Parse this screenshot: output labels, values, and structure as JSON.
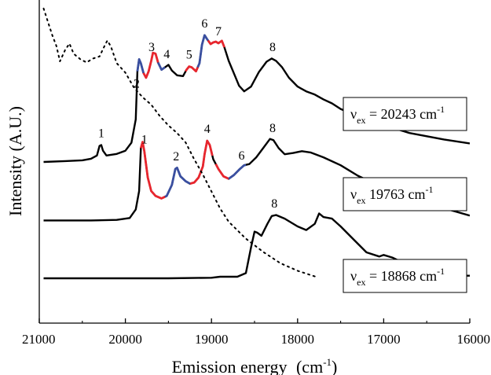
{
  "chart_data": {
    "type": "line",
    "xlabel": "Emission energy",
    "xlabel_unit_base": "(cm",
    "xlabel_unit_sup": "-1",
    "xlabel_unit_close": ")",
    "ylabel": "Intensity (A.U.)",
    "xlim": [
      21000,
      16000
    ],
    "x_reversed": true,
    "x_ticks": [
      "21000",
      "20000",
      "19000",
      "18000",
      "17000",
      "16000"
    ],
    "x_tick_values": [
      21000,
      20000,
      19000,
      18000,
      17000,
      16000
    ],
    "y_tick_labels": false,
    "grid": false,
    "colors": {
      "main": "#000000",
      "red": "#e8262e",
      "blue": "#3a4fa0"
    },
    "series": [
      {
        "id": "ex20243",
        "label_prefix": "ν",
        "label_sub": "ex",
        "label_value": " = 20243 cm",
        "label_sup": "-1",
        "style": "solid",
        "points": [
          [
            20950,
            0.02
          ],
          [
            20700,
            0.03
          ],
          [
            20500,
            0.04
          ],
          [
            20400,
            0.06
          ],
          [
            20330,
            0.1
          ],
          [
            20300,
            0.22
          ],
          [
            20280,
            0.23
          ],
          [
            20260,
            0.16
          ],
          [
            20220,
            0.1
          ],
          [
            20100,
            0.12
          ],
          [
            20000,
            0.16
          ],
          [
            19930,
            0.26
          ],
          [
            19880,
            0.55
          ],
          [
            19860,
            1.15
          ],
          [
            19840,
            1.3
          ],
          [
            19820,
            1.25
          ],
          [
            19790,
            1.13
          ],
          [
            19760,
            1.07
          ],
          [
            19730,
            1.15
          ],
          [
            19700,
            1.28
          ],
          [
            19680,
            1.38
          ],
          [
            19650,
            1.37
          ],
          [
            19620,
            1.26
          ],
          [
            19580,
            1.17
          ],
          [
            19540,
            1.2
          ],
          [
            19500,
            1.23
          ],
          [
            19460,
            1.16
          ],
          [
            19400,
            1.1
          ],
          [
            19330,
            1.09
          ],
          [
            19290,
            1.17
          ],
          [
            19260,
            1.21
          ],
          [
            19230,
            1.2
          ],
          [
            19180,
            1.15
          ],
          [
            19140,
            1.25
          ],
          [
            19110,
            1.48
          ],
          [
            19080,
            1.6
          ],
          [
            19050,
            1.55
          ],
          [
            19010,
            1.49
          ],
          [
            18980,
            1.51
          ],
          [
            18950,
            1.52
          ],
          [
            18920,
            1.5
          ],
          [
            18880,
            1.53
          ],
          [
            18850,
            1.45
          ],
          [
            18800,
            1.28
          ],
          [
            18730,
            1.1
          ],
          [
            18680,
            0.97
          ],
          [
            18620,
            0.9
          ],
          [
            18540,
            0.96
          ],
          [
            18450,
            1.14
          ],
          [
            18360,
            1.27
          ],
          [
            18300,
            1.31
          ],
          [
            18250,
            1.28
          ],
          [
            18180,
            1.2
          ],
          [
            18100,
            1.07
          ],
          [
            18000,
            0.96
          ],
          [
            17900,
            0.9
          ],
          [
            17800,
            0.86
          ],
          [
            17700,
            0.8
          ],
          [
            17600,
            0.75
          ],
          [
            17500,
            0.68
          ],
          [
            17300,
            0.59
          ],
          [
            17000,
            0.48
          ],
          [
            16700,
            0.38
          ],
          [
            16300,
            0.3
          ],
          [
            16000,
            0.25
          ]
        ],
        "red_segments": [
          [
            19790,
            19620
          ],
          [
            19300,
            19160
          ],
          [
            19040,
            18850
          ]
        ],
        "blue_segments": [
          [
            19860,
            19790
          ],
          [
            19620,
            19540
          ],
          [
            19160,
            19040
          ]
        ]
      },
      {
        "id": "ex19763",
        "label_prefix": "ν",
        "label_sub": "ex",
        "label_value": "  19763 cm",
        "label_sup": "-1",
        "style": "solid",
        "points": [
          [
            20950,
            0.02
          ],
          [
            20400,
            0.02
          ],
          [
            20100,
            0.03
          ],
          [
            19950,
            0.06
          ],
          [
            19880,
            0.2
          ],
          [
            19840,
            0.5
          ],
          [
            19820,
            1.2
          ],
          [
            19800,
            1.3
          ],
          [
            19780,
            1.15
          ],
          [
            19740,
            0.72
          ],
          [
            19700,
            0.5
          ],
          [
            19650,
            0.42
          ],
          [
            19580,
            0.38
          ],
          [
            19520,
            0.42
          ],
          [
            19460,
            0.6
          ],
          [
            19420,
            0.86
          ],
          [
            19400,
            0.88
          ],
          [
            19360,
            0.74
          ],
          [
            19300,
            0.66
          ],
          [
            19250,
            0.62
          ],
          [
            19200,
            0.64
          ],
          [
            19150,
            0.72
          ],
          [
            19100,
            0.9
          ],
          [
            19080,
            1.1
          ],
          [
            19050,
            1.32
          ],
          [
            19020,
            1.25
          ],
          [
            18980,
            1.02
          ],
          [
            18920,
            0.86
          ],
          [
            18860,
            0.74
          ],
          [
            18800,
            0.7
          ],
          [
            18740,
            0.76
          ],
          [
            18670,
            0.86
          ],
          [
            18620,
            0.92
          ],
          [
            18560,
            0.94
          ],
          [
            18480,
            1.05
          ],
          [
            18400,
            1.2
          ],
          [
            18320,
            1.35
          ],
          [
            18280,
            1.33
          ],
          [
            18220,
            1.2
          ],
          [
            18150,
            1.1
          ],
          [
            18050,
            1.12
          ],
          [
            17950,
            1.15
          ],
          [
            17850,
            1.13
          ],
          [
            17700,
            1.05
          ],
          [
            17500,
            0.92
          ],
          [
            17300,
            0.75
          ],
          [
            17000,
            0.55
          ],
          [
            16700,
            0.38
          ],
          [
            16300,
            0.22
          ],
          [
            16000,
            0.1
          ]
        ],
        "red_segments": [
          [
            19820,
            19540
          ],
          [
            19250,
            18990
          ],
          [
            18950,
            18800
          ]
        ],
        "blue_segments": [
          [
            19540,
            19250
          ],
          [
            18800,
            18600
          ]
        ]
      },
      {
        "id": "ex18868",
        "label_prefix": "ν",
        "label_sub": "ex",
        "label_value": " = 18868 cm",
        "label_sup": "-1",
        "style": "solid",
        "points": [
          [
            20950,
            0.0
          ],
          [
            19500,
            0.0
          ],
          [
            19000,
            0.01
          ],
          [
            18900,
            0.03
          ],
          [
            18700,
            0.03
          ],
          [
            18600,
            0.1
          ],
          [
            18540,
            0.6
          ],
          [
            18500,
            0.9
          ],
          [
            18470,
            0.88
          ],
          [
            18420,
            0.82
          ],
          [
            18350,
            1.05
          ],
          [
            18300,
            1.2
          ],
          [
            18250,
            1.22
          ],
          [
            18150,
            1.15
          ],
          [
            18000,
            1.0
          ],
          [
            17900,
            0.93
          ],
          [
            17800,
            1.05
          ],
          [
            17750,
            1.25
          ],
          [
            17700,
            1.18
          ],
          [
            17600,
            1.15
          ],
          [
            17500,
            1.0
          ],
          [
            17350,
            0.75
          ],
          [
            17200,
            0.5
          ],
          [
            17050,
            0.42
          ],
          [
            17000,
            0.45
          ],
          [
            16900,
            0.4
          ],
          [
            16800,
            0.32
          ],
          [
            16700,
            0.22
          ],
          [
            16550,
            0.1
          ],
          [
            16400,
            0.08
          ],
          [
            16200,
            0.05
          ],
          [
            16000,
            0.05
          ]
        ],
        "red_segments": [],
        "blue_segments": []
      },
      {
        "id": "absorption",
        "style": "dotted",
        "points": [
          [
            20950,
            7.15
          ],
          [
            20850,
            6.45
          ],
          [
            20800,
            6.15
          ],
          [
            20760,
            5.75
          ],
          [
            20700,
            6.05
          ],
          [
            20650,
            6.22
          ],
          [
            20600,
            5.95
          ],
          [
            20520,
            5.8
          ],
          [
            20450,
            5.72
          ],
          [
            20380,
            5.82
          ],
          [
            20300,
            5.88
          ],
          [
            20250,
            6.12
          ],
          [
            20210,
            6.3
          ],
          [
            20170,
            6.15
          ],
          [
            20100,
            5.7
          ],
          [
            20000,
            5.45
          ],
          [
            19900,
            5.05
          ],
          [
            19800,
            4.8
          ],
          [
            19700,
            4.6
          ],
          [
            19600,
            4.3
          ],
          [
            19500,
            4.05
          ],
          [
            19400,
            3.85
          ],
          [
            19300,
            3.6
          ],
          [
            19200,
            3.15
          ],
          [
            19100,
            2.75
          ],
          [
            19000,
            2.3
          ],
          [
            18900,
            1.85
          ],
          [
            18800,
            1.5
          ],
          [
            18600,
            1.05
          ],
          [
            18400,
            0.7
          ],
          [
            18200,
            0.4
          ],
          [
            18000,
            0.2
          ],
          [
            17800,
            0.05
          ]
        ]
      }
    ],
    "peak_labels": [
      {
        "text": "1",
        "series": "ex20243",
        "x": 20280
      },
      {
        "text": "2",
        "series": "ex20243",
        "x": 19870
      },
      {
        "text": "3",
        "series": "ex20243",
        "x": 19695
      },
      {
        "text": "4",
        "series": "ex20243",
        "x": 19520
      },
      {
        "text": "5",
        "series": "ex20243",
        "x": 19260
      },
      {
        "text": "6",
        "series": "ex20243",
        "x": 19080
      },
      {
        "text": "7",
        "series": "ex20243",
        "x": 18920
      },
      {
        "text": "8",
        "series": "ex20243",
        "x": 18290
      },
      {
        "text": "1",
        "series": "ex19763",
        "x": 19780
      },
      {
        "text": "2",
        "series": "ex19763",
        "x": 19410
      },
      {
        "text": "4",
        "series": "ex19763",
        "x": 19050
      },
      {
        "text": "6",
        "series": "ex19763",
        "x": 18650
      },
      {
        "text": "8",
        "series": "ex19763",
        "x": 18290
      },
      {
        "text": "8",
        "series": "ex18868",
        "x": 18270
      }
    ]
  }
}
